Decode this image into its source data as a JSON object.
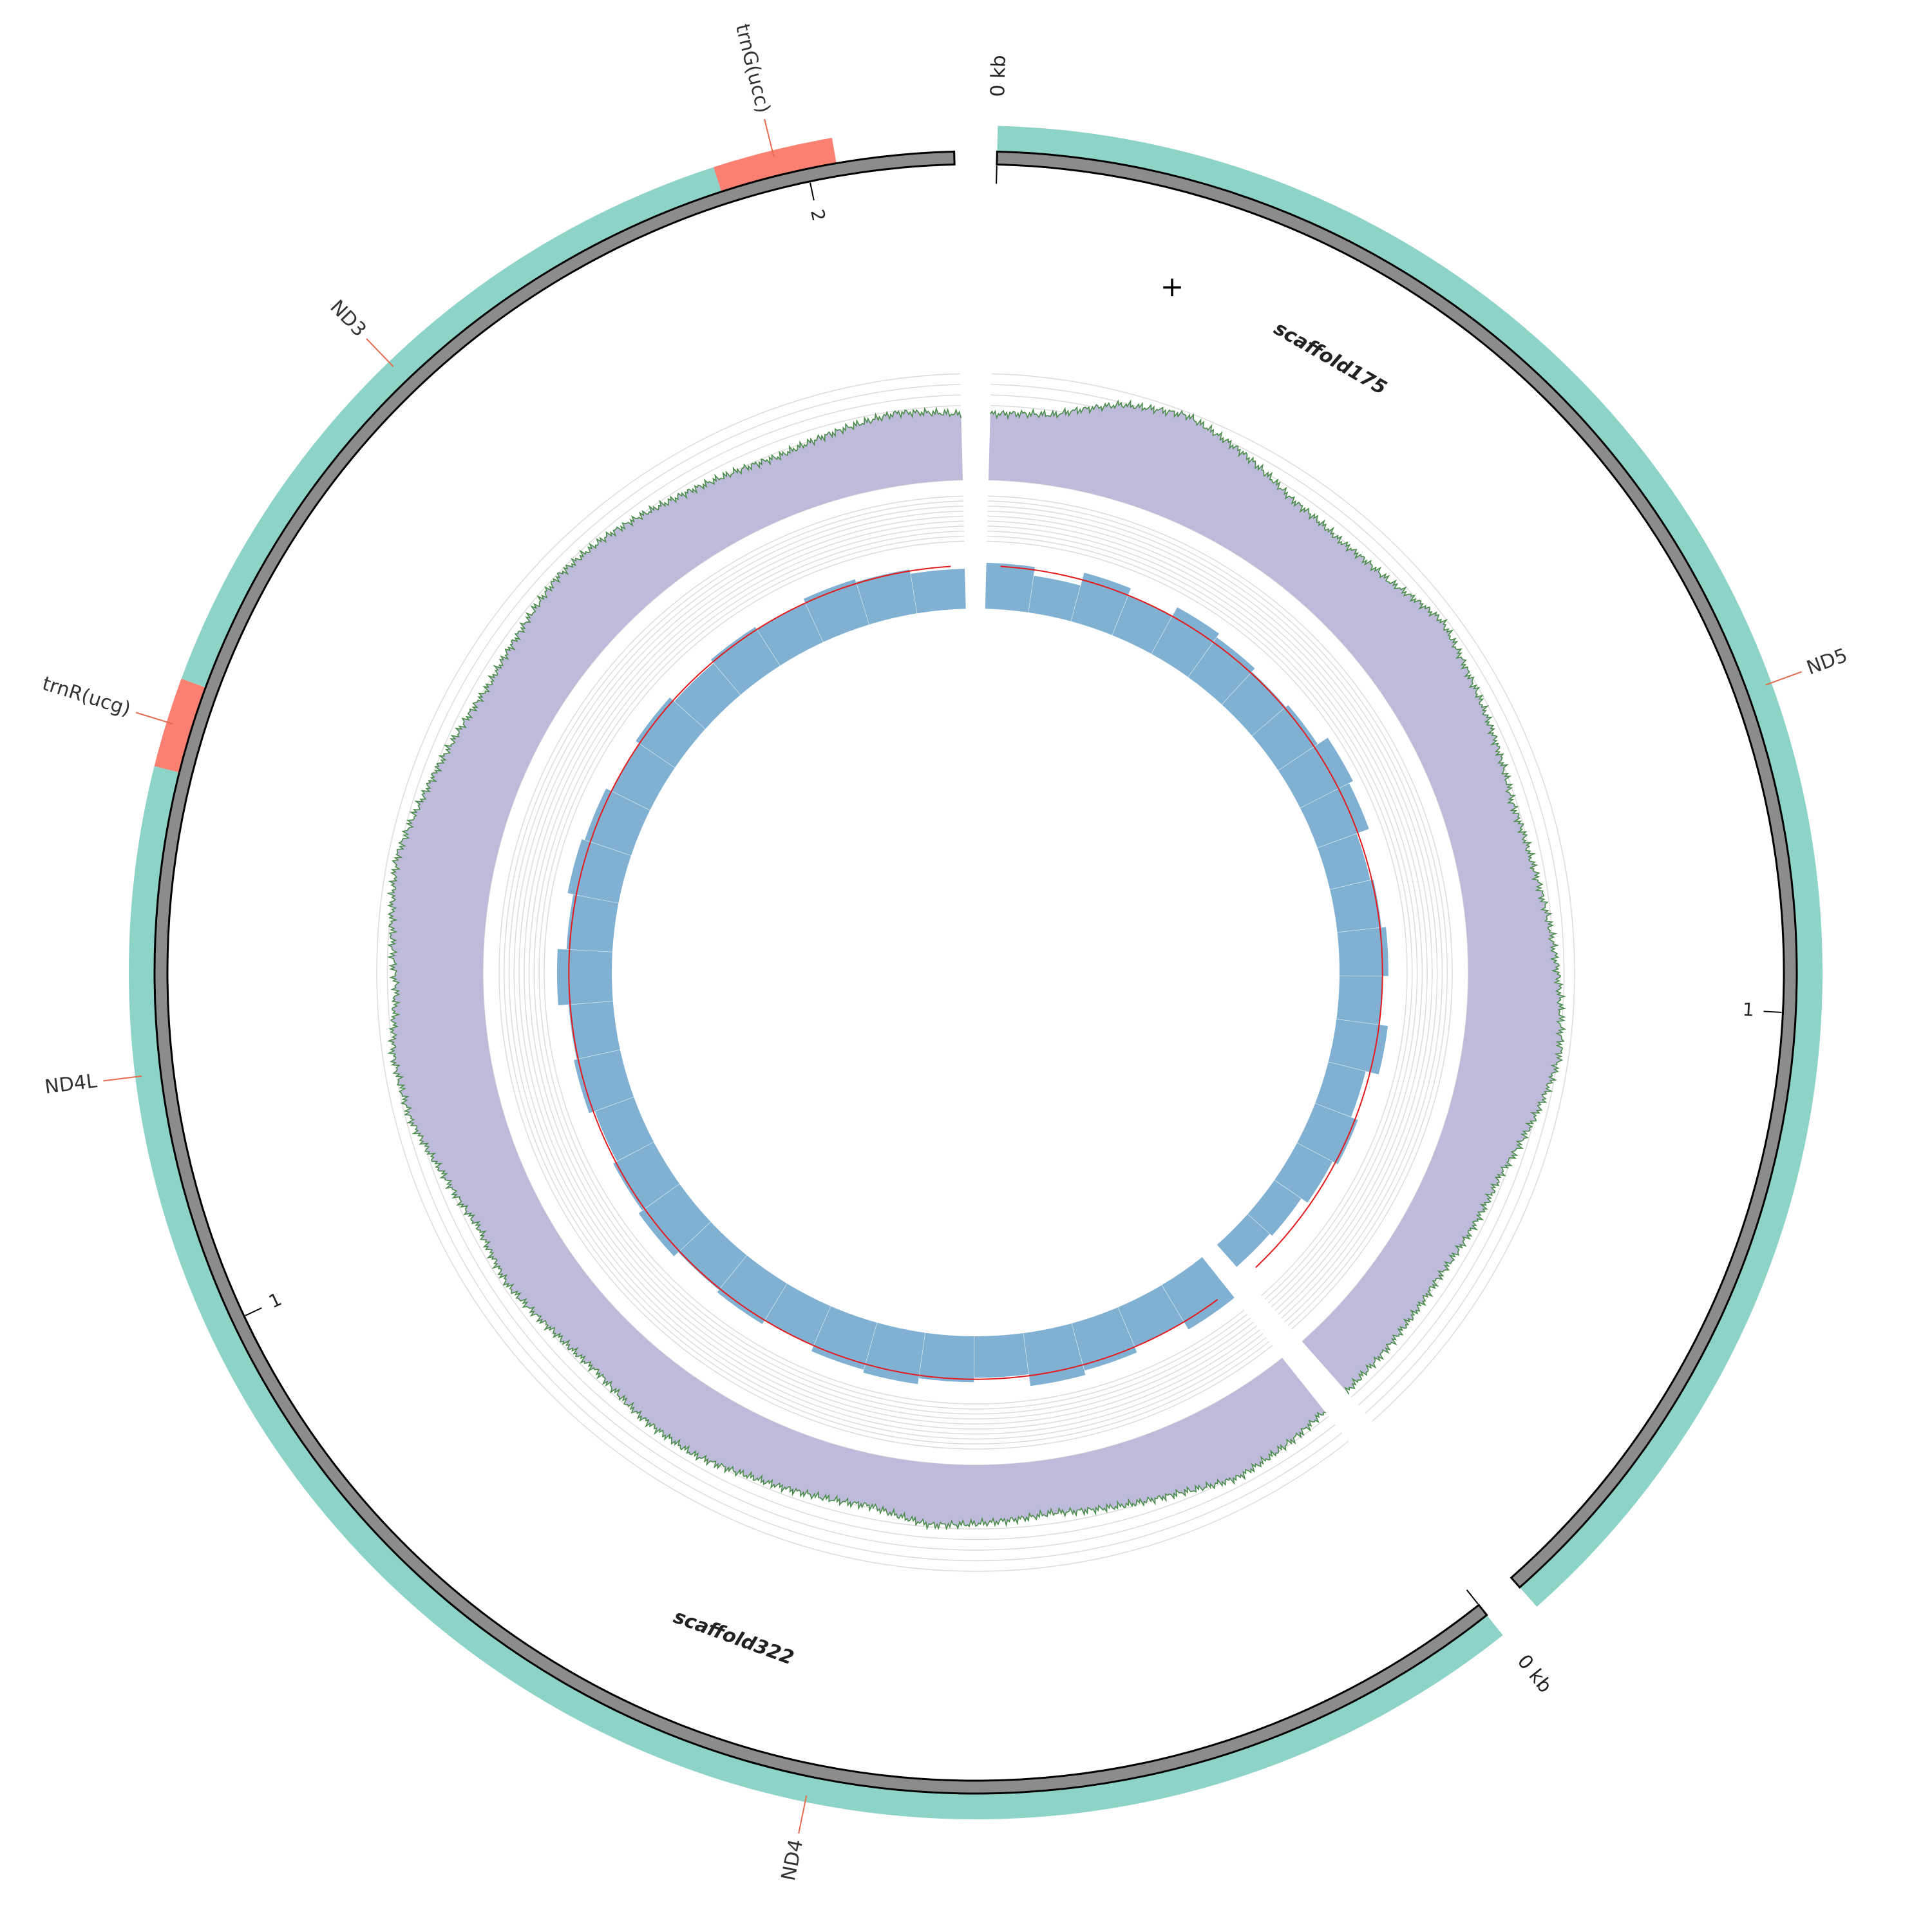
{
  "strand_label": "+",
  "colors": {
    "gene": "#8dd3c7",
    "trna": "#fb8072",
    "backbone": "#8c8c8c",
    "tick_line": "#e56b4e",
    "coverage_fill": "#bebada",
    "coverage_line": "#4a8c4a",
    "gc_bar": "#80b1d3",
    "gc_mean_line": "#e41a1c",
    "grid": "#dcdcdc"
  },
  "scaffolds": [
    {
      "name": "scaffold175",
      "length_kb": 1.5,
      "tick_labels": [
        "0 kb",
        "1"
      ],
      "features": [
        {
          "label": "ND5",
          "type": "gene",
          "start_kb": 0.0,
          "end_kb": 1.5
        }
      ]
    },
    {
      "name": "scaffold322",
      "length_kb": 2.1,
      "tick_labels": [
        "0 kb",
        "1",
        "2"
      ],
      "features": [
        {
          "label": "ND4",
          "type": "gene",
          "start_kb": 0.0,
          "end_kb": 0.97
        },
        {
          "label": "ND4L",
          "type": "gene",
          "start_kb": 0.97,
          "end_kb": 1.38
        },
        {
          "label": "trnR(ucg)",
          "type": "trna",
          "start_kb": 1.38,
          "end_kb": 1.44
        },
        {
          "label": "ND3",
          "type": "gene",
          "start_kb": 1.44,
          "end_kb": 1.94
        },
        {
          "label": "trnG(ucc)",
          "type": "trna",
          "start_kb": 1.94,
          "end_kb": 2.02
        }
      ]
    }
  ],
  "coverage_profile": [
    0.62,
    0.66,
    0.88,
    0.97,
    0.86,
    0.72,
    0.68,
    0.72,
    0.86,
    0.78,
    0.72,
    0.66,
    0.7,
    0.78,
    0.86,
    0.92,
    0.8,
    0.66,
    0.62,
    0.58,
    0.6,
    0.62,
    0.68,
    0.72,
    0.62,
    0.56,
    0.5,
    0.54,
    0.58,
    0.48,
    0.52,
    0.56,
    0.62,
    0.6,
    0.54,
    0.58,
    0.66,
    0.62,
    0.72,
    0.86,
    0.9,
    0.82,
    0.88,
    0.92,
    0.82,
    0.74,
    0.68,
    0.72,
    0.78,
    0.74,
    0.66,
    0.6,
    0.56,
    0.62,
    0.68,
    0.62
  ],
  "gc_bars_scaffold175": [
    0.62,
    0.5,
    0.68,
    0.58,
    0.72,
    0.66,
    0.6,
    0.64,
    0.8,
    0.74,
    0.56,
    0.6,
    0.66,
    0.58,
    0.7,
    0.52,
    0.62,
    0.54,
    0.44,
    0.4
  ],
  "gc_bars_scaffold322": [
    0.7,
    0.58,
    0.66,
    0.72,
    0.56,
    0.62,
    0.7,
    0.66,
    0.58,
    0.64,
    0.6,
    0.68,
    0.62,
    0.56,
    0.64,
    0.6,
    0.74,
    0.62,
    0.7,
    0.66,
    0.58,
    0.64,
    0.56,
    0.62,
    0.58,
    0.64,
    0.6,
    0.54
  ]
}
